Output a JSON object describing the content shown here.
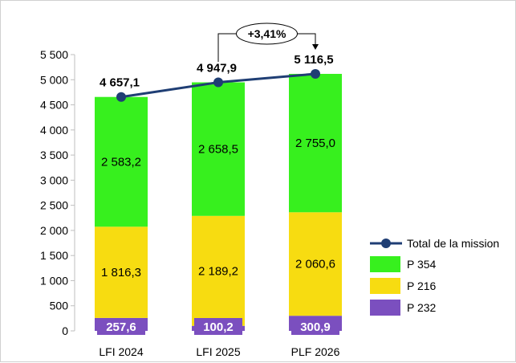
{
  "chart_data": {
    "type": "bar",
    "stacked": true,
    "categories": [
      "LFI 2024",
      "LFI 2025",
      "PLF 2026"
    ],
    "series": [
      {
        "name": "P 232",
        "color": "#7b4fbf",
        "values": [
          257.6,
          100.2,
          300.9
        ],
        "labels": [
          "257,6",
          "100,2",
          "300,9"
        ]
      },
      {
        "name": "P 216",
        "color": "#f7dc11",
        "values": [
          1816.3,
          2189.2,
          2060.6
        ],
        "labels": [
          "1 816,3",
          "2 189,2",
          "2 060,6"
        ]
      },
      {
        "name": "P 354",
        "color": "#37f01e",
        "values": [
          2583.2,
          2658.5,
          2755.0
        ],
        "labels": [
          "2 583,2",
          "2 658,5",
          "2 755,0"
        ]
      }
    ],
    "total_line": {
      "name": "Total de la mission",
      "color": "#1f3e74",
      "values": [
        4657.1,
        4947.9,
        5116.5
      ],
      "labels": [
        "4 657,1",
        "4 947,9",
        "5 116,5"
      ]
    },
    "annotation": {
      "text": "+3,41%",
      "from": "LFI 2025",
      "to": "PLF 2026"
    },
    "ylim": [
      0,
      5500
    ],
    "yticks": [
      0,
      500,
      1000,
      1500,
      2000,
      2500,
      3000,
      3500,
      4000,
      4500,
      5000,
      5500
    ],
    "ytick_labels": [
      "0",
      "500",
      "1 000",
      "1 500",
      "2 000",
      "2 500",
      "3 000",
      "3 500",
      "4 000",
      "4 500",
      "5 000",
      "5 500"
    ],
    "legend": {
      "position": "right",
      "items": [
        "Total de la mission",
        "P 354",
        "P 216",
        "P 232"
      ]
    },
    "title": "",
    "xlabel": "",
    "ylabel": "",
    "grid": false
  }
}
